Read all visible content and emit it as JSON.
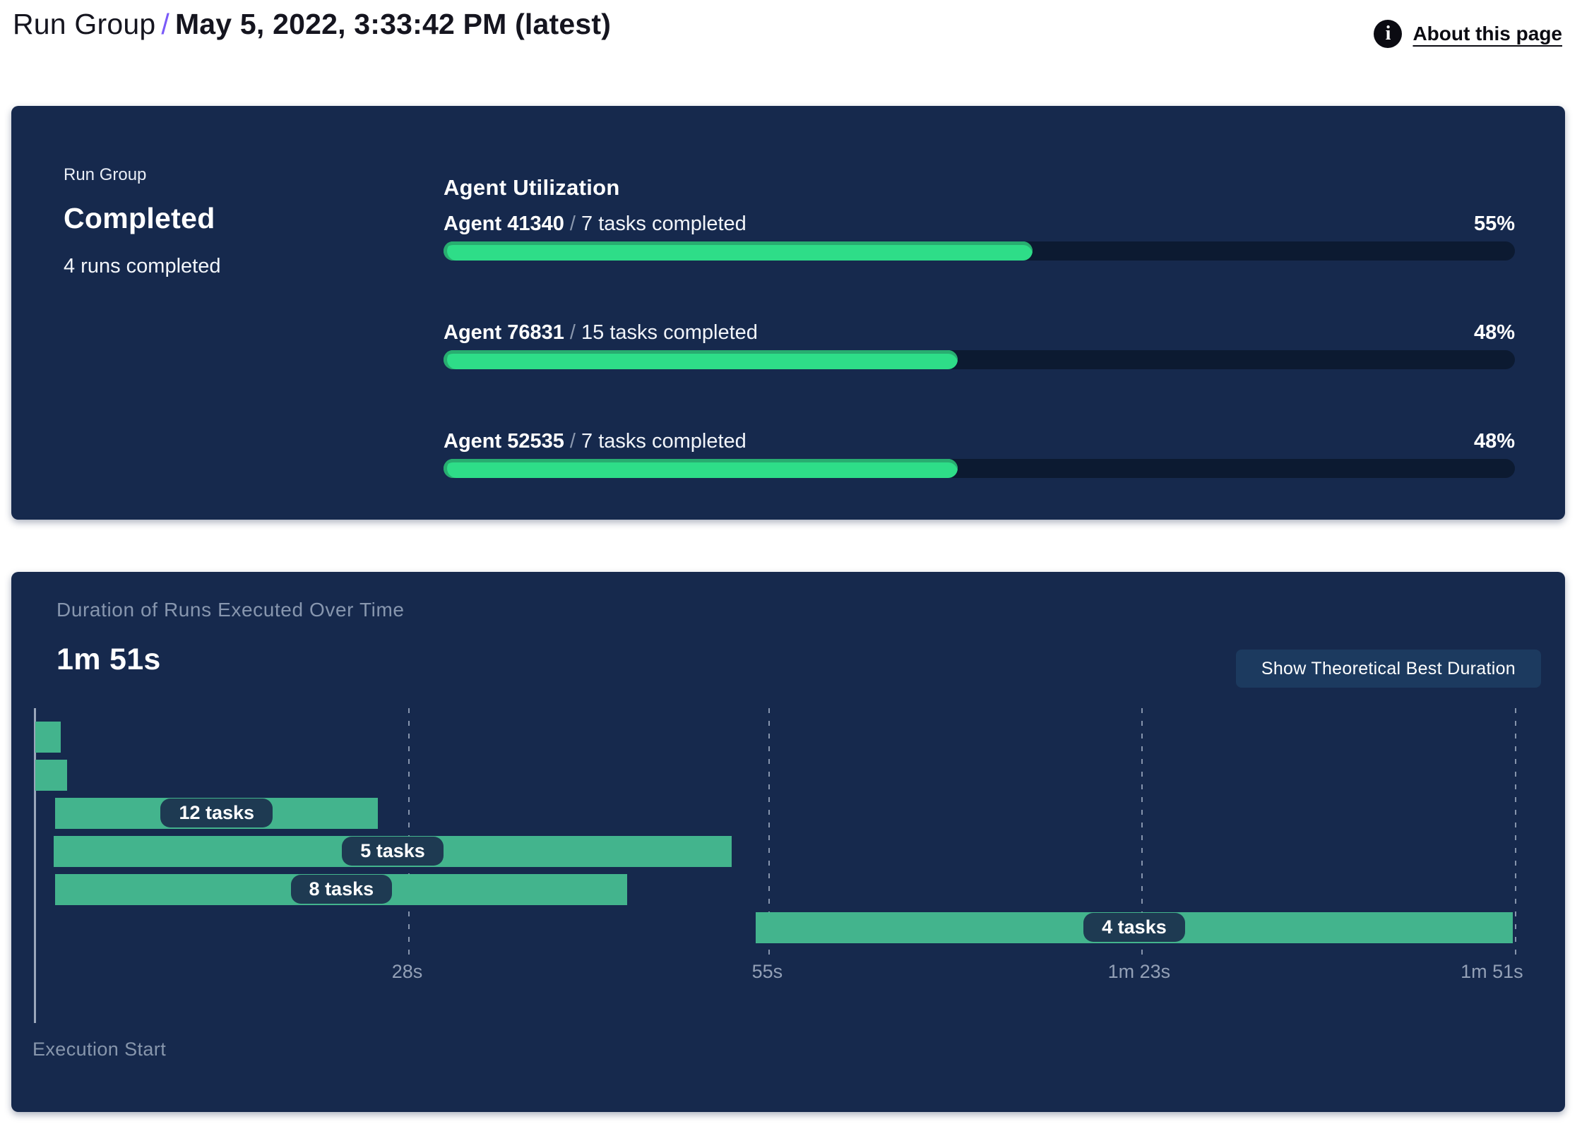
{
  "header": {
    "breadcrumb": "Run Group",
    "separator": "/",
    "title": "May 5, 2022, 3:33:42 PM (latest)",
    "about_link": "About this page",
    "info_icon_glyph": "i"
  },
  "colors": {
    "panel_navy": "#16294d",
    "track_navy": "#0c1a31",
    "utilization_green": "#2edd88",
    "gantt_green": "#43b48d",
    "pill_navy": "#1e3a52",
    "accent_purple": "#7a5af8",
    "muted_label": "#93a0b6"
  },
  "status_panel": {
    "label": "Run Group",
    "status": "Completed",
    "summary": "4 runs completed",
    "utilization": {
      "heading": "Agent Utilization",
      "separator": "/",
      "agents": [
        {
          "name": "Agent 41340",
          "tasks": "7 tasks completed",
          "percent": "55%"
        },
        {
          "name": "Agent 76831",
          "tasks": "15 tasks completed",
          "percent": "48%"
        },
        {
          "name": "Agent 52535",
          "tasks": "7 tasks completed",
          "percent": "48%"
        }
      ]
    }
  },
  "duration_panel": {
    "title": "Duration of Runs Executed Over Time",
    "total_duration": "1m 51s",
    "button_label": "Show Theoretical Best Duration",
    "execution_start_label": "Execution Start"
  },
  "chart_data": {
    "type": "bar",
    "subtype": "gantt-timeline",
    "title": "Duration of Runs Executed Over Time",
    "total_duration_label": "1m 51s",
    "xlabel": "Execution Start",
    "x_unit": "seconds",
    "xlim": [
      0,
      111
    ],
    "grid": "dashed-vertical",
    "legend": "none",
    "x_ticks": [
      {
        "seconds": 28,
        "label": "28s"
      },
      {
        "seconds": 55,
        "label": "55s"
      },
      {
        "seconds": 83,
        "label": "1m 23s"
      },
      {
        "seconds": 111,
        "label": "1m 51s"
      }
    ],
    "runs": [
      {
        "start_s": 0,
        "end_s": 1.9,
        "label": ""
      },
      {
        "start_s": 0,
        "end_s": 2.4,
        "label": ""
      },
      {
        "start_s": 1.5,
        "end_s": 25.7,
        "label": "12 tasks"
      },
      {
        "start_s": 1.4,
        "end_s": 52.2,
        "label": "5 tasks"
      },
      {
        "start_s": 1.5,
        "end_s": 44.4,
        "label": "8 tasks"
      },
      {
        "start_s": 54.0,
        "end_s": 110.8,
        "label": "4 tasks"
      }
    ]
  }
}
